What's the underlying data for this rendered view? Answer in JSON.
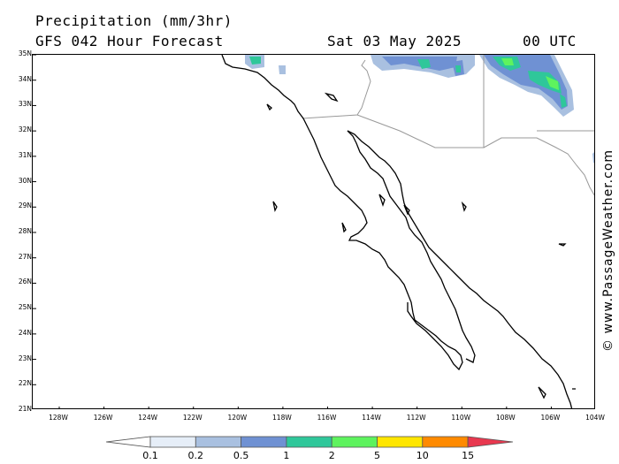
{
  "header": {
    "title": "Precipitation (mm/3hr)",
    "subtitle": "GFS 042 Hour Forecast",
    "date": "Sat 03 May 2025",
    "time": "00 UTC"
  },
  "map": {
    "lat_labels": [
      "35N",
      "34N",
      "33N",
      "32N",
      "31N",
      "30N",
      "29N",
      "28N",
      "27N",
      "26N",
      "25N",
      "24N",
      "23N",
      "22N",
      "21N"
    ],
    "lon_labels": [
      "128W",
      "126W",
      "124W",
      "122W",
      "120W",
      "118W",
      "116W",
      "114W",
      "112W",
      "110W",
      "108W",
      "106W",
      "104W"
    ],
    "land_color": "#ffffff",
    "coast_color": "#000000",
    "border_color": "#999999"
  },
  "credit": "© www.PassageWeather.com",
  "colorbar": {
    "labels": [
      "0.1",
      "0.2",
      "0.5",
      "1",
      "2",
      "5",
      "10",
      "15"
    ],
    "colors": [
      "#ffffff",
      "#e6eef8",
      "#a9c0e0",
      "#6f91d3",
      "#2fc79a",
      "#5ef35e",
      "#ffe600",
      "#ff8a00",
      "#e8384f"
    ]
  }
}
